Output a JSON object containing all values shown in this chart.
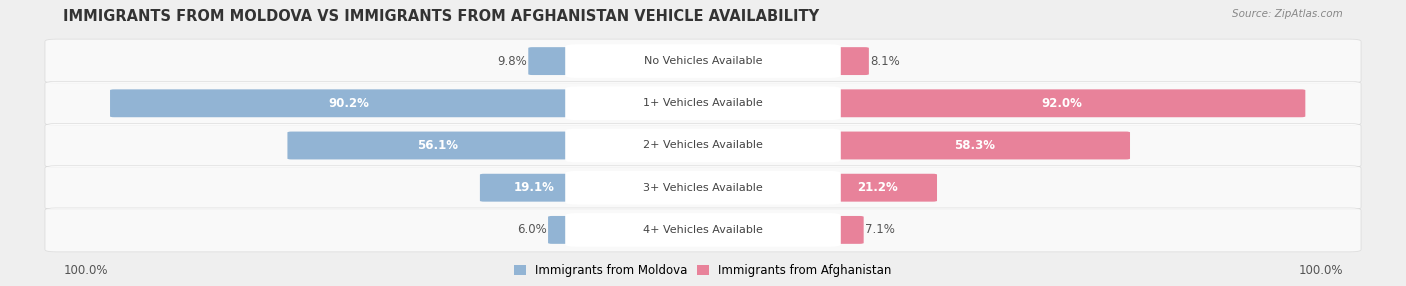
{
  "title": "IMMIGRANTS FROM MOLDOVA VS IMMIGRANTS FROM AFGHANISTAN VEHICLE AVAILABILITY",
  "source": "Source: ZipAtlas.com",
  "categories": [
    "No Vehicles Available",
    "1+ Vehicles Available",
    "2+ Vehicles Available",
    "3+ Vehicles Available",
    "4+ Vehicles Available"
  ],
  "moldova_values": [
    9.8,
    90.2,
    56.1,
    19.1,
    6.0
  ],
  "afghanistan_values": [
    8.1,
    92.0,
    58.3,
    21.2,
    7.1
  ],
  "moldova_color": "#92B4D4",
  "afghanistan_color": "#E8829A",
  "label_moldova": "Immigrants from Moldova",
  "label_afghanistan": "Immigrants from Afghanistan",
  "bg_color": "#EFEFEF",
  "row_bg_color": "#E2E2E2",
  "title_fontsize": 10.5,
  "label_fontsize": 8.0,
  "value_fontsize": 8.5,
  "source_fontsize": 7.5,
  "max_value": 100.0,
  "threshold_white_label": 15.0
}
